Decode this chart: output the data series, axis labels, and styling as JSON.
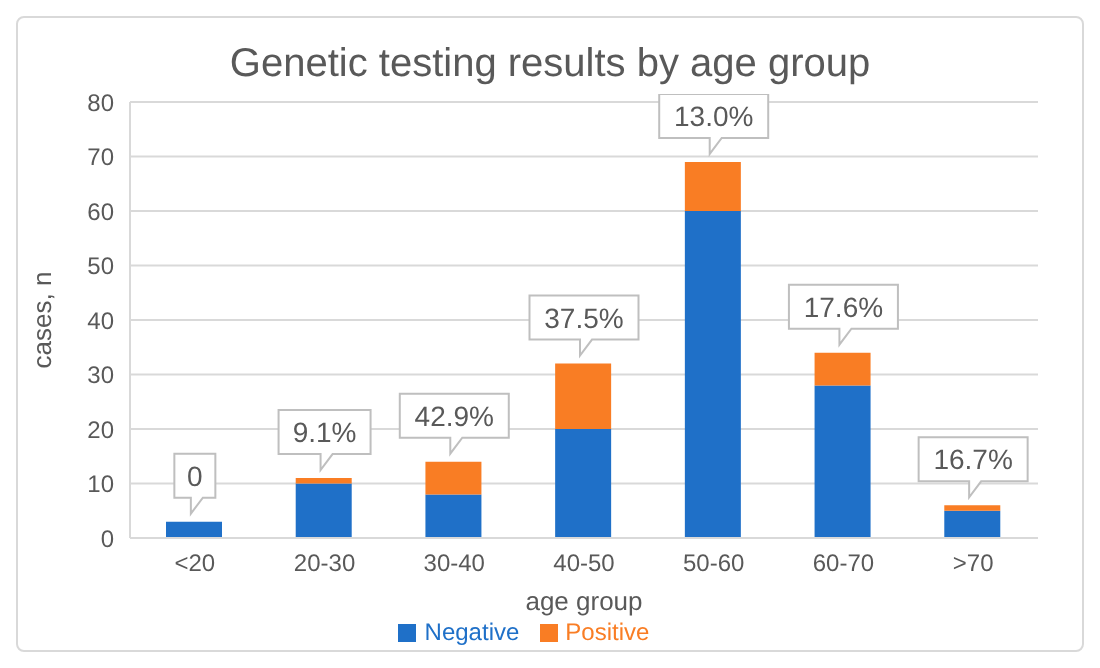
{
  "chart_data": {
    "type": "bar",
    "title": "Genetic testing results by age group",
    "xlabel": "age group",
    "ylabel": "cases, n",
    "categories": [
      "<20",
      "20-30",
      "30-40",
      "40-50",
      "50-60",
      "60-70",
      ">70"
    ],
    "stacked": true,
    "series": [
      {
        "name": "Negative",
        "color": "#1f70c8",
        "values": [
          3,
          10,
          8,
          20,
          60,
          28,
          5
        ]
      },
      {
        "name": "Positive",
        "color": "#f97d24",
        "values": [
          0,
          1,
          6,
          12,
          9,
          6,
          1
        ]
      }
    ],
    "ylim": [
      0,
      80
    ],
    "yticks": [
      0,
      10,
      20,
      30,
      40,
      50,
      60,
      70,
      80
    ],
    "grid": "y",
    "legend": "bottom",
    "annotations": [
      {
        "text": "0",
        "x": "<20",
        "y": 3
      },
      {
        "text": "9.1%",
        "x": "20-30",
        "y": 11
      },
      {
        "text": "42.9%",
        "x": "30-40",
        "y": 14
      },
      {
        "text": "37.5%",
        "x": "40-50",
        "y": 32
      },
      {
        "text": "13.0%",
        "x": "50-60",
        "y": 69
      },
      {
        "text": "17.6%",
        "x": "60-70",
        "y": 34
      },
      {
        "text": "16.7%",
        "x": ">70",
        "y": 6
      }
    ]
  }
}
